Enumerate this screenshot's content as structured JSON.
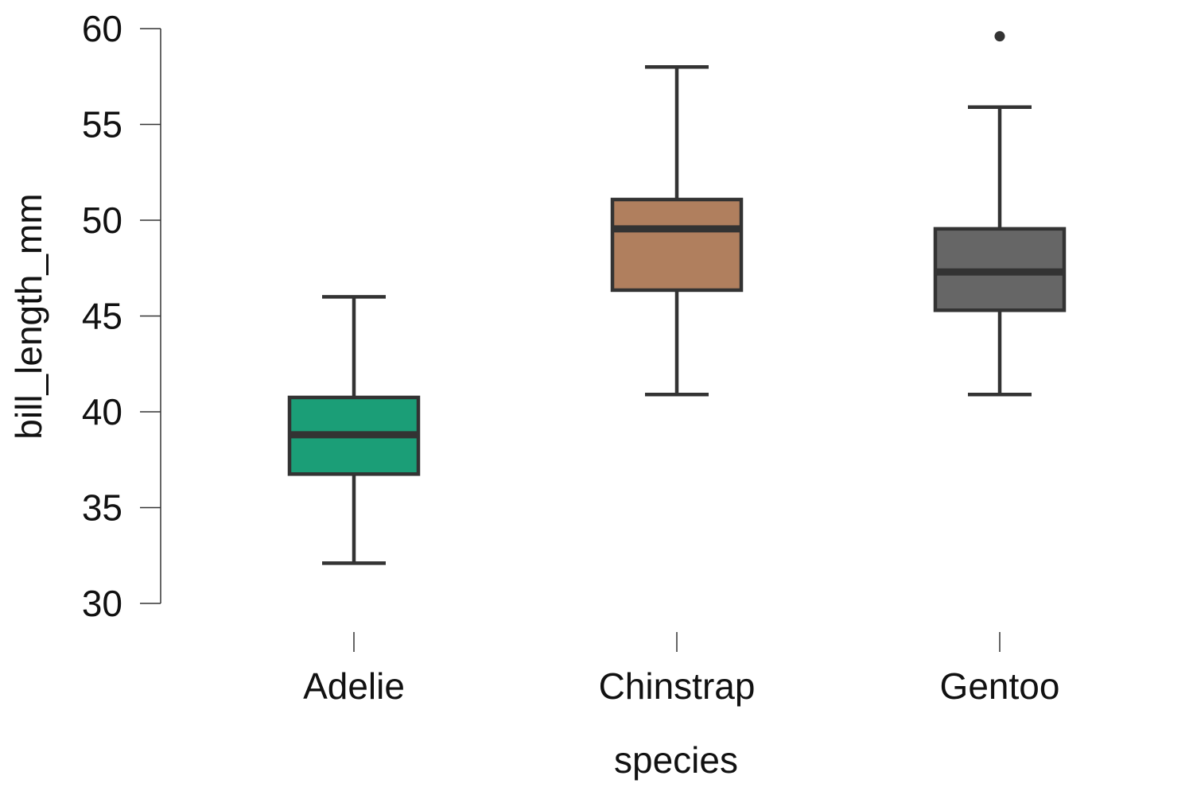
{
  "chart_data": {
    "type": "box",
    "xlabel": "species",
    "ylabel": "bill_length_mm",
    "ylim": [
      30,
      60
    ],
    "yticks": [
      30,
      35,
      40,
      45,
      50,
      55,
      60
    ],
    "grid": false,
    "legend": "none",
    "series": [
      {
        "category": "Adelie",
        "color": "#1b9e77",
        "whisker_low": 32.1,
        "q1": 36.75,
        "median": 38.8,
        "q3": 40.75,
        "whisker_high": 46.0,
        "outliers": []
      },
      {
        "category": "Chinstrap",
        "color": "#b07f5e",
        "whisker_low": 40.9,
        "q1": 46.35,
        "median": 49.55,
        "q3": 51.08,
        "whisker_high": 58.0,
        "outliers": []
      },
      {
        "category": "Gentoo",
        "color": "#666666",
        "whisker_low": 40.9,
        "q1": 45.3,
        "median": 47.3,
        "q3": 49.55,
        "whisker_high": 55.9,
        "outliers": [
          59.6
        ]
      }
    ],
    "line_color": "#333333"
  }
}
